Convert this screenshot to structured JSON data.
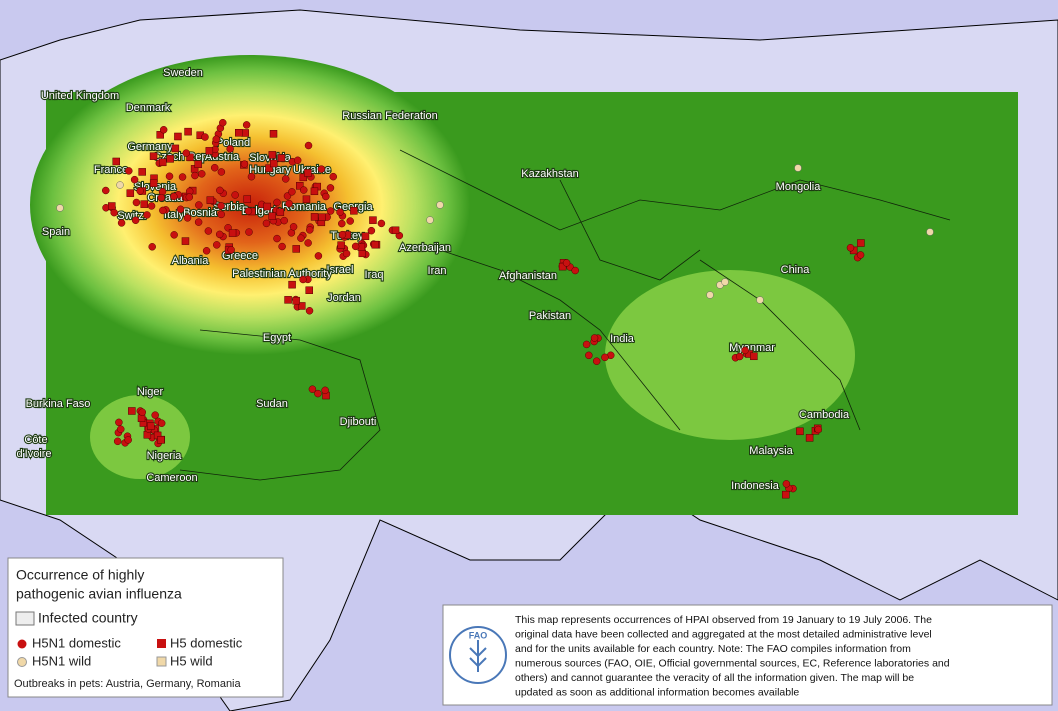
{
  "map": {
    "labels": [
      "Sweden",
      "United Kingdom",
      "Denmark",
      "Russian Federation",
      "Poland",
      "Germany",
      "Czech Rep.",
      "Austria",
      "Slovakia",
      "Hungary",
      "Ukraine",
      "France",
      "Kazakhstan",
      "Mongolia",
      "Slovenia",
      "Croatia",
      "Romania",
      "Georgia",
      "Switz.",
      "Italy",
      "Bosnia",
      "Serbia",
      "Bulgaria",
      "Spain",
      "Turkey",
      "Azerbaijan",
      "Greece",
      "Albania",
      "Israel",
      "Iraq",
      "Iran",
      "Palestinian Authority",
      "China",
      "Afghanistan",
      "Jordan",
      "Pakistan",
      "India",
      "Egypt",
      "Myanmar",
      "Niger",
      "Burkina Faso",
      "Sudan",
      "Djibouti",
      "Cambodia",
      "Côte",
      "d'Ivoire",
      "Nigeria",
      "Malaysia",
      "Cameroon",
      "Indonesia"
    ]
  },
  "legend": {
    "title": [
      "Occurrence of highly",
      "pathogenic avian influenza"
    ],
    "infected": "Infected country",
    "items": [
      "H5N1 domestic",
      "H5 domestic",
      "H5N1 wild",
      "H5 wild"
    ],
    "pets": "Outbreaks in pets: Austria, Germany, Romania"
  },
  "note": {
    "lines": [
      "This map represents occurrences of HPAI observed from 19 January to 19 July 2006. The",
      "original data have been collected and aggregated at the most detailed administrative level",
      "and for the units available for each country. Note: The FAO compiles information from",
      "numerous sources (FAO, OIE, Official governmental sources, EC, Reference laboratories and",
      "others) and cannot guarantee the veracity of all the information given. The map will be",
      "updated as soon as additional information becomes available"
    ],
    "logo": "FAO"
  }
}
